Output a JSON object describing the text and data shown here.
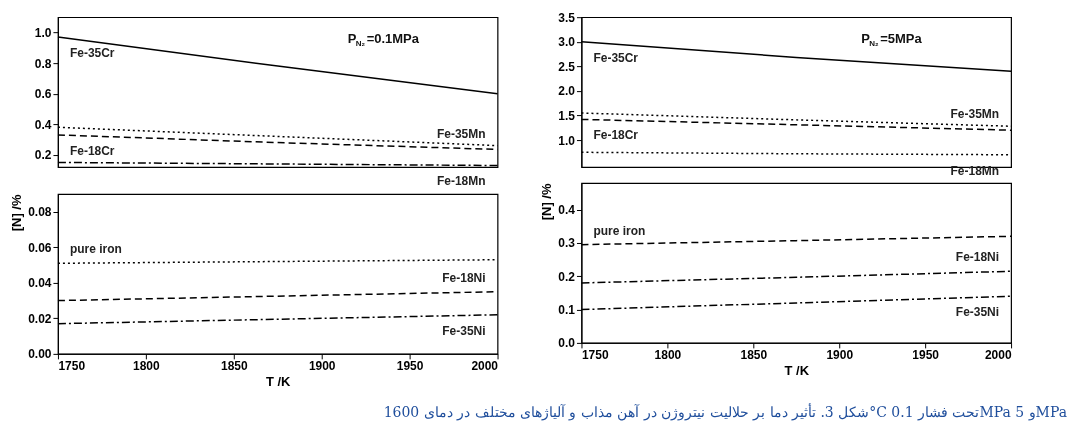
{
  "chart_data": [
    {
      "type": "line",
      "x": [
        1750,
        1875,
        2000
      ],
      "xlim": [
        1750,
        2000
      ],
      "xticks": [
        1750,
        1800,
        1850,
        1900,
        1950,
        2000
      ],
      "tick_labels": "y",
      "ylim": [
        0.12,
        1.1
      ],
      "yticks": [
        {
          "value": 0.2,
          "label": "0.2"
        },
        {
          "value": 0.4,
          "label": "0.4"
        },
        {
          "value": 0.6,
          "label": "0.6"
        },
        {
          "value": 0.8,
          "label": "0.8"
        },
        {
          "value": 1,
          "label": "1.0"
        }
      ],
      "annotations": [
        "P$_{N₂}$=0.1MPa"
      ],
      "series": [
        {
          "name": "Fe-35Cr",
          "color": "#000000",
          "line_style": "solid",
          "values": [
            0.97,
            0.78,
            0.6
          ]
        },
        {
          "name": "Fe-35Mn",
          "color": "#000000",
          "line_style": "dotted",
          "values": [
            0.38,
            0.32,
            0.26
          ]
        },
        {
          "name": "Fe-18Cr",
          "color": "#000000",
          "line_style": "dashed",
          "values": [
            0.33,
            0.28,
            0.235
          ]
        },
        {
          "name": "Fe-18Mn",
          "color": "#000000",
          "line_style": "dashdot",
          "values": [
            0.15,
            0.14,
            0.13
          ]
        }
      ]
    },
    {
      "type": "line",
      "x": [
        1750,
        1875,
        2000
      ],
      "xlim": [
        1750,
        2000
      ],
      "xticks": [
        1750,
        1800,
        1850,
        1900,
        1950,
        2000
      ],
      "xlabel": "T /K",
      "ylabel": "[N] /%",
      "ylim": [
        0,
        0.09
      ],
      "yticks": [
        {
          "value": 0,
          "label": "0.00"
        },
        {
          "value": 0.02,
          "label": "0.02"
        },
        {
          "value": 0.04,
          "label": "0.04"
        },
        {
          "value": 0.06,
          "label": "0.06"
        },
        {
          "value": 0.08,
          "label": "0.08"
        }
      ],
      "series": [
        {
          "name": "pure iron",
          "color": "#000000",
          "line_style": "dotted",
          "values": [
            0.051,
            0.052,
            0.053
          ]
        },
        {
          "name": "Fe-18Ni",
          "color": "#000000",
          "line_style": "dashed",
          "values": [
            0.03,
            0.0325,
            0.035
          ]
        },
        {
          "name": "Fe-35Ni",
          "color": "#000000",
          "line_style": "dashdot",
          "values": [
            0.017,
            0.0195,
            0.022
          ]
        }
      ]
    },
    {
      "type": "line",
      "x": [
        1750,
        1875,
        2000
      ],
      "xlim": [
        1750,
        2000
      ],
      "xticks": [
        1750,
        1800,
        1850,
        1900,
        1950,
        2000
      ],
      "tick_labels": "y",
      "ylim": [
        0.45,
        3.5
      ],
      "yticks": [
        {
          "value": 1,
          "label": "1.0"
        },
        1.5,
        {
          "value": 2,
          "label": "2.0"
        },
        2.5,
        {
          "value": 3,
          "label": "3.0"
        },
        3.5
      ],
      "annotations": [
        "P$_{N₂}$=5MPa"
      ],
      "series": [
        {
          "name": "Fe-35Cr",
          "color": "#000000",
          "line_style": "solid",
          "values": [
            3.0,
            2.68,
            2.4
          ]
        },
        {
          "name": "Fe-35Mn",
          "color": "#000000",
          "line_style": "dotted",
          "values": [
            1.55,
            1.41,
            1.28
          ]
        },
        {
          "name": "Fe-18Cr",
          "color": "#000000",
          "line_style": "dashed",
          "values": [
            1.42,
            1.31,
            1.2
          ]
        },
        {
          "name": "Fe-18Mn",
          "color": "#000000",
          "line_style": "dotted",
          "values": [
            0.75,
            0.72,
            0.7
          ]
        }
      ]
    },
    {
      "type": "line",
      "x": [
        1750,
        1875,
        2000
      ],
      "xlim": [
        1750,
        2000
      ],
      "xticks": [
        1750,
        1800,
        1850,
        1900,
        1950,
        2000
      ],
      "xlabel": "T /K",
      "ylabel": "[N] /%",
      "ylim": [
        0,
        0.48
      ],
      "yticks": [
        {
          "value": 0,
          "label": "0.0"
        },
        0.1,
        0.2,
        0.3,
        0.4
      ],
      "annotations": [
        "شکل 3. تأثیر دما بر حلالیت نیتروژن در آهن مذاب و آلیاژهای مختلف  در دمای 1600°C تحت فشار 0.1MPa و 5MPa"
      ],
      "series": [
        {
          "name": "pure iron",
          "color": "#000000",
          "line_style": "dashed",
          "values": [
            0.295,
            0.307,
            0.32
          ]
        },
        {
          "name": "Fe-18Ni",
          "color": "#000000",
          "line_style": "dashdot",
          "values": [
            0.18,
            0.197,
            0.215
          ]
        },
        {
          "name": "Fe-35Ni",
          "color": "#000000",
          "line_style": "dashdot",
          "values": [
            0.1,
            0.12,
            0.14
          ]
        }
      ]
    }
  ]
}
